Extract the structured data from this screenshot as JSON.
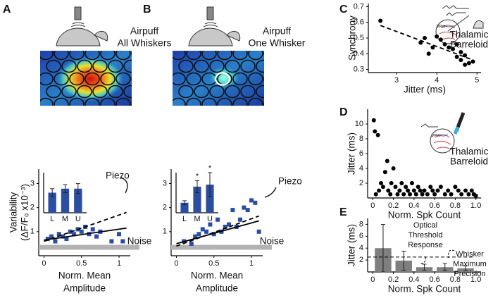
{
  "panel_labels": [
    "A",
    "B",
    "C",
    "D",
    "E"
  ],
  "stimuli": [
    {
      "title": "Airpuff",
      "subtitle": "All Whiskers"
    },
    {
      "title": "Airpuff",
      "subtitle": "One Whisker"
    }
  ],
  "chart_data": [
    {
      "type": "scatter",
      "marker": "square",
      "color": "#2b4ea2",
      "x": [
        0.05,
        0.1,
        0.15,
        0.2,
        0.25,
        0.3,
        0.35,
        0.4,
        0.45,
        0.5,
        0.55,
        0.6,
        0.65,
        0.7,
        0.75,
        0.9,
        1.0,
        1.05
      ],
      "y": [
        0.7,
        0.8,
        0.6,
        0.9,
        0.8,
        0.7,
        1.0,
        0.9,
        1.1,
        1.0,
        1.2,
        0.9,
        1.1,
        0.8,
        1.0,
        0.6,
        0.9,
        0.6
      ],
      "xlim": [
        -0.07,
        1.15
      ],
      "ylim": [
        0,
        3.6
      ],
      "xticks": [
        0,
        0.5,
        1
      ],
      "yticks": [
        1,
        2,
        3
      ],
      "xlabel": [
        "Norm. Mean",
        "Amplitude"
      ],
      "ylabel": [
        "Variability",
        "(ΔF/F₀ x10⁻³)"
      ],
      "lines": [
        {
          "label": "Piezo",
          "style": "dashed",
          "x": [
            0,
            1.1
          ],
          "y": [
            0.6,
            1.8
          ]
        },
        {
          "style": "solid",
          "x": [
            0,
            1.1
          ],
          "y": [
            0.65,
            1.15
          ]
        }
      ],
      "band": {
        "label": "Noise",
        "value": 0.35,
        "color": "#b3b3b3"
      }
    },
    {
      "type": "bar",
      "color": "#2b4ea2",
      "categories": [
        "L",
        "M",
        "U"
      ],
      "values": [
        1.0,
        1.2,
        1.2
      ],
      "errors": [
        0.2,
        0.2,
        0.25
      ],
      "ylim": [
        0,
        2
      ]
    },
    {
      "type": "scatter",
      "marker": "square",
      "color": "#2b4ea2",
      "x": [
        0.1,
        0.2,
        0.25,
        0.3,
        0.35,
        0.4,
        0.45,
        0.5,
        0.55,
        0.6,
        0.65,
        0.7,
        0.75,
        0.8,
        0.85,
        0.9,
        0.95,
        1.0,
        1.05,
        1.1
      ],
      "y": [
        0.6,
        0.5,
        0.8,
        0.9,
        1.1,
        1.0,
        1.3,
        0.9,
        1.5,
        1.0,
        1.2,
        1.3,
        1.9,
        1.2,
        1.5,
        2.0,
        1.9,
        2.3,
        2.2,
        1.0
      ],
      "xlim": [
        -0.07,
        1.15
      ],
      "ylim": [
        0,
        3.6
      ],
      "xticks": [
        0,
        0.5,
        1
      ],
      "yticks": [
        1,
        2,
        3
      ],
      "xlabel": [
        "Norm. Mean",
        "Amplitude"
      ],
      "lines": [
        {
          "label": "Piezo",
          "style": "dashed",
          "x": [
            0,
            1.1
          ],
          "y": [
            0.4,
            1.65
          ]
        },
        {
          "style": "solid",
          "x": [
            0,
            1.1
          ],
          "y": [
            0.5,
            1.45
          ]
        }
      ],
      "band": {
        "label": "Noise",
        "value": 0.35,
        "color": "#b3b3b3"
      }
    },
    {
      "type": "bar",
      "color": "#2b4ea2",
      "categories": [
        "L",
        "M",
        "U"
      ],
      "values": [
        0.5,
        1.3,
        1.4
      ],
      "errors": [
        0.1,
        0.3,
        0.6
      ],
      "ylim": [
        0,
        2
      ],
      "markers": [
        {
          "index": 1,
          "label": "*"
        },
        {
          "index": 2,
          "label": "*"
        }
      ]
    },
    {
      "type": "scatter",
      "marker": "circle",
      "color": "#000000",
      "x": [
        2.6,
        3.6,
        3.7,
        3.8,
        3.9,
        4.0,
        4.1,
        4.2,
        4.3,
        4.4,
        4.5,
        4.5,
        4.6,
        4.6,
        4.7,
        4.7,
        4.8,
        4.9
      ],
      "y": [
        0.61,
        0.47,
        0.5,
        0.4,
        0.44,
        0.51,
        0.49,
        0.46,
        0.44,
        0.43,
        0.38,
        0.46,
        0.41,
        0.36,
        0.33,
        0.39,
        0.34,
        0.35
      ],
      "xlim": [
        2.3,
        5.1
      ],
      "ylim": [
        0.28,
        0.72
      ],
      "xticks": [
        3,
        4,
        5
      ],
      "yticks": [
        0.3,
        0.4,
        0.5,
        0.6,
        0.7
      ],
      "xlabel": "Jitter (ms)",
      "ylabel": "Synchrony",
      "lines": [
        {
          "style": "dashed",
          "x": [
            2.6,
            4.9
          ],
          "y": [
            0.58,
            0.36
          ]
        }
      ],
      "notes": [
        [
          "Thalamic",
          "Barreloid"
        ],
        [
          "VPm"
        ]
      ]
    },
    {
      "type": "scatter",
      "marker": "circle",
      "color": "#000000",
      "x": [
        0.01,
        0.02,
        0.03,
        0.05,
        0.06,
        0.08,
        0.1,
        0.12,
        0.14,
        0.15,
        0.17,
        0.18,
        0.2,
        0.22,
        0.24,
        0.26,
        0.28,
        0.3,
        0.32,
        0.34,
        0.36,
        0.38,
        0.4,
        0.42,
        0.44,
        0.46,
        0.48,
        0.5,
        0.53,
        0.56,
        0.58,
        0.6,
        0.63,
        0.66,
        0.7,
        0.73,
        0.76,
        0.8,
        0.83,
        0.86,
        0.9,
        0.93,
        0.96,
        0.98,
        1.0
      ],
      "y": [
        10.5,
        9,
        0.5,
        8.5,
        1,
        2,
        1.5,
        3.5,
        5,
        1,
        0.5,
        2,
        4,
        1.5,
        0.5,
        1,
        2,
        0.5,
        1.5,
        1,
        0.5,
        2,
        1,
        0.5,
        1.5,
        1,
        0.5,
        1,
        0.5,
        1.5,
        1,
        0.5,
        1,
        1.5,
        0.5,
        1,
        0.5,
        1.5,
        1,
        0.5,
        1,
        0.5,
        1,
        0.5,
        0.3
      ],
      "xlim": [
        -0.05,
        1.05
      ],
      "ylim": [
        0,
        12
      ],
      "xticks": [
        0,
        0.2,
        0.4,
        0.6,
        0.8,
        {
          "value": 1,
          "label": "1.0"
        }
      ],
      "yticks": [
        2,
        4,
        6,
        8,
        10
      ],
      "xlabel": "Norm. Spk Count",
      "ylabel": "Jitter (ms)",
      "notes": [
        [
          "Thalamic",
          "Barreloid"
        ],
        [
          "VPm"
        ]
      ]
    },
    {
      "type": "bar",
      "color": "#7f7f7f",
      "x": [
        0.1,
        0.3,
        0.5,
        0.7,
        0.9
      ],
      "values": [
        4,
        1.9,
        0.8,
        0.8,
        0.6
      ],
      "errors": [
        4,
        1.6,
        0.5,
        0.6,
        0.4
      ],
      "xlim": [
        -0.05,
        1.05
      ],
      "ylim": [
        0,
        9
      ],
      "xticks": [
        0,
        0.2,
        0.4,
        0.6,
        0.8,
        {
          "value": 1,
          "label": "1.0"
        }
      ],
      "yticks": [
        2,
        4,
        6,
        8
      ],
      "xlabel": "Norm. Spk Count",
      "ylabel": "Jitter (ms)",
      "hline": {
        "value": 2.5,
        "style": "dashed"
      },
      "notes": [
        [
          "Optical",
          "Threshold",
          "Response"
        ],
        [
          "Whisker",
          "Maximum",
          "Precision"
        ]
      ]
    }
  ]
}
